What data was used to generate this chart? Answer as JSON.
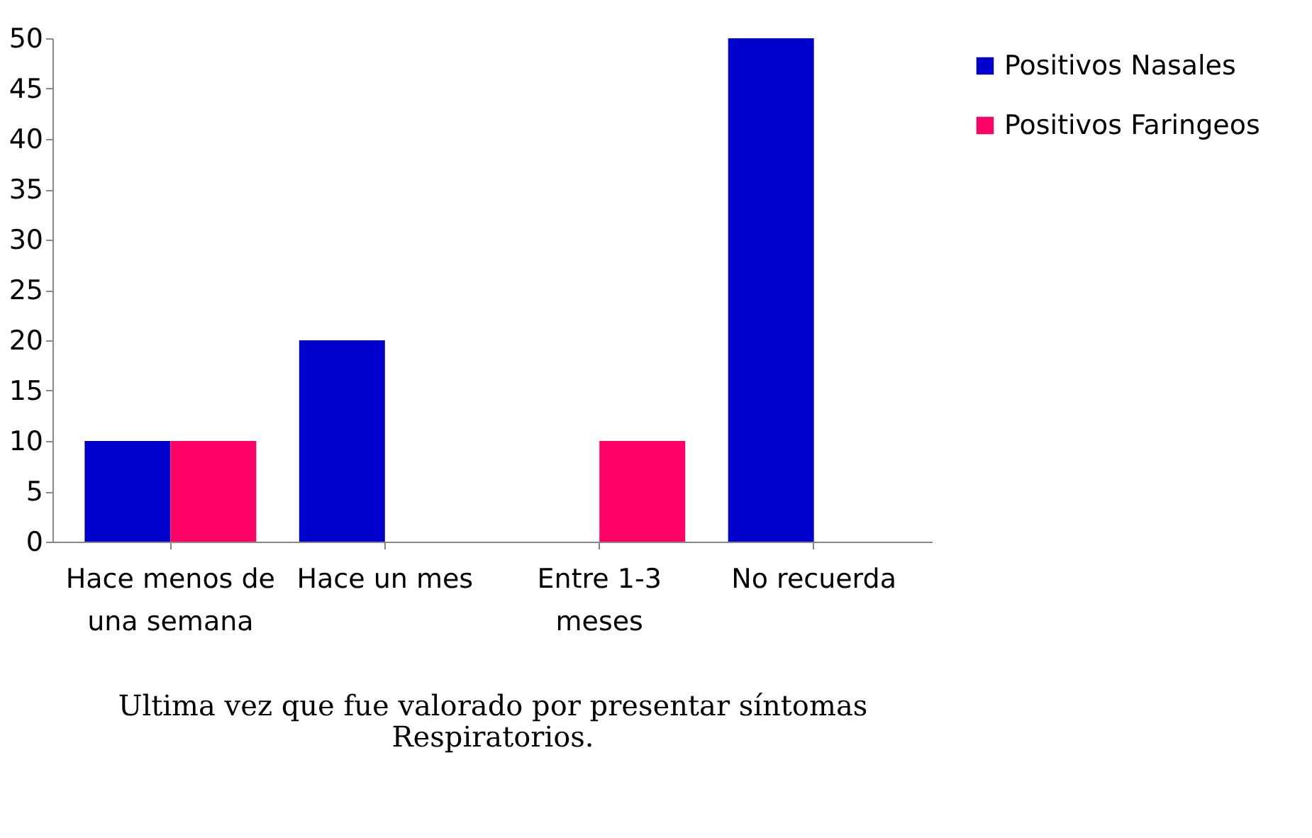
{
  "chart_data": {
    "type": "bar",
    "xlabel": "Ultima vez que fue valorado por presentar síntomas Respiratorios.",
    "categories": [
      "Hace menos de una semana",
      "Hace un mes",
      "Entre 1-3 meses",
      "No recuerda"
    ],
    "series": [
      {
        "name": "Positivos Nasales",
        "color": "#0000cc",
        "values": [
          10,
          20,
          0,
          50
        ]
      },
      {
        "name": "Positivos Faringeos",
        "color": "#ff0066",
        "values": [
          10,
          0,
          10,
          0
        ]
      }
    ],
    "ylim": [
      0,
      50
    ],
    "yticks": [
      0,
      5,
      10,
      15,
      20,
      25,
      30,
      35,
      40,
      45,
      50
    ],
    "grid": false,
    "legend": "right"
  }
}
